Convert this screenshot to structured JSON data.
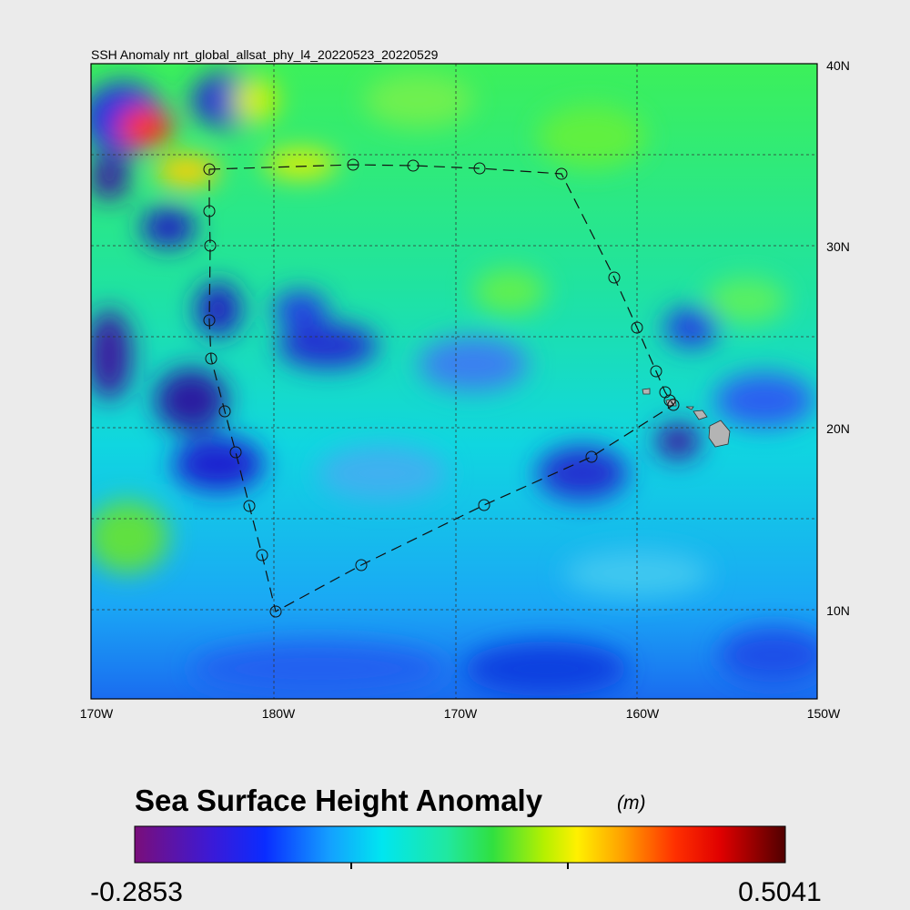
{
  "map": {
    "title": "SSH Anomaly nrt_global_allsat_phy_l4_20220523_20220529",
    "lon_labels": [
      "170W",
      "180W",
      "170W",
      "160W",
      "150W"
    ],
    "lat_labels": [
      "40N",
      "30N",
      "20N",
      "10N"
    ]
  },
  "colorbar": {
    "title": "Sea Surface Height Anomaly",
    "units": "(m)",
    "min_label": "-0.2853",
    "max_label": "0.5041"
  }
}
